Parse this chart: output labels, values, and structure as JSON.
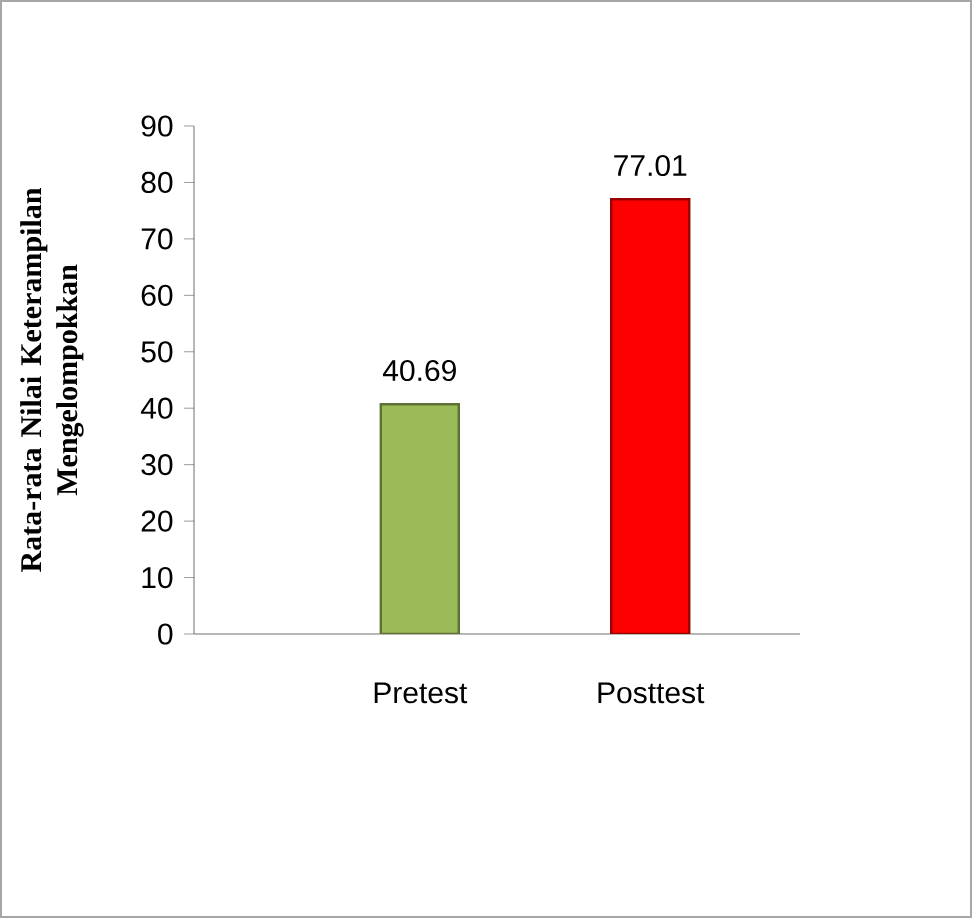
{
  "chart_data": {
    "type": "bar",
    "ylabel": "Rata-rata Nilai Keterampilan Mengelompokkan",
    "categories": [
      "Pretest",
      "Posttest"
    ],
    "values": [
      40.69,
      77.01
    ],
    "colors": [
      "#9bbb59",
      "#ff0000"
    ],
    "ylim": [
      0,
      90
    ],
    "yticks": [
      0,
      10,
      20,
      30,
      40,
      50,
      60,
      70,
      80,
      90
    ],
    "data_labels": true
  }
}
